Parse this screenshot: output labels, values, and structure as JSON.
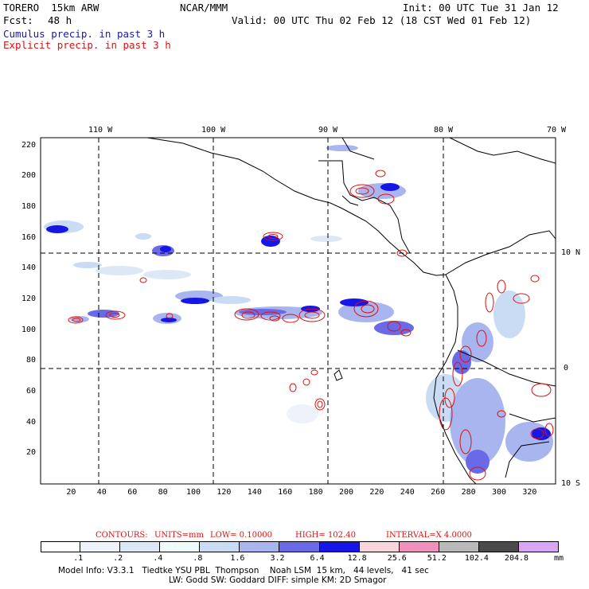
{
  "header": {
    "model": "TORERO  15km ARW",
    "org": "NCAR/MMM",
    "init": "Init: 00 UTC Tue 31 Jan 12",
    "fcst_label": "Fcst:",
    "fcst_value": "48 h",
    "valid": "Valid: 00 UTC Thu 02 Feb 12 (18 CST Wed 01 Feb 12)",
    "field1": "Cumulus precip. in past 3 h",
    "field2": "Explicit precip. in past 3 h",
    "field1_color": "#1a1aa0",
    "field2_color": "#e01010"
  },
  "map": {
    "lon_labels": [
      "110 W",
      "100 W",
      "90 W",
      "80 W",
      "70 W"
    ],
    "lat_labels": [
      "10 N",
      "0",
      "10 S"
    ],
    "x_ticks": [
      "20",
      "40",
      "60",
      "80",
      "100",
      "120",
      "140",
      "160",
      "180",
      "200",
      "220",
      "240",
      "260",
      "280",
      "300",
      "320"
    ],
    "y_ticks": [
      "20",
      "40",
      "60",
      "80",
      "100",
      "120",
      "140",
      "160",
      "180",
      "200",
      "220"
    ]
  },
  "contours": {
    "label": "CONTOURS:",
    "units": "UNITS=mm",
    "low": "LOW= 0.10000",
    "high": "HIGH= 102.40",
    "interval": "INTERVAL=X 4.0000",
    "color": "#e01010"
  },
  "colorbar": {
    "labels": [
      ".1",
      ".2",
      ".4",
      ".8",
      "1.6",
      "3.2",
      "6.4",
      "12.8",
      "25.6",
      "51.2",
      "102.4",
      "204.8"
    ],
    "unit": "mm",
    "colors": [
      "#ffffff",
      "#eef3fb",
      "#dde8f6",
      "#eefcfc",
      "#c9dcf4",
      "#a9b5ee",
      "#6a6ae6",
      "#1616e6",
      "#f9d5dd",
      "#f090bd",
      "#b9b9b9",
      "#4a4a4a",
      "#d9a5f5"
    ]
  },
  "footer": {
    "line1": "Model Info: V3.3.1   Tiedtke YSU PBL  Thompson    Noah LSM  15 km,   44 levels,   41 sec",
    "line2": "LW: Godd SW: Goddard DIFF: simple KM: 2D Smagor"
  }
}
